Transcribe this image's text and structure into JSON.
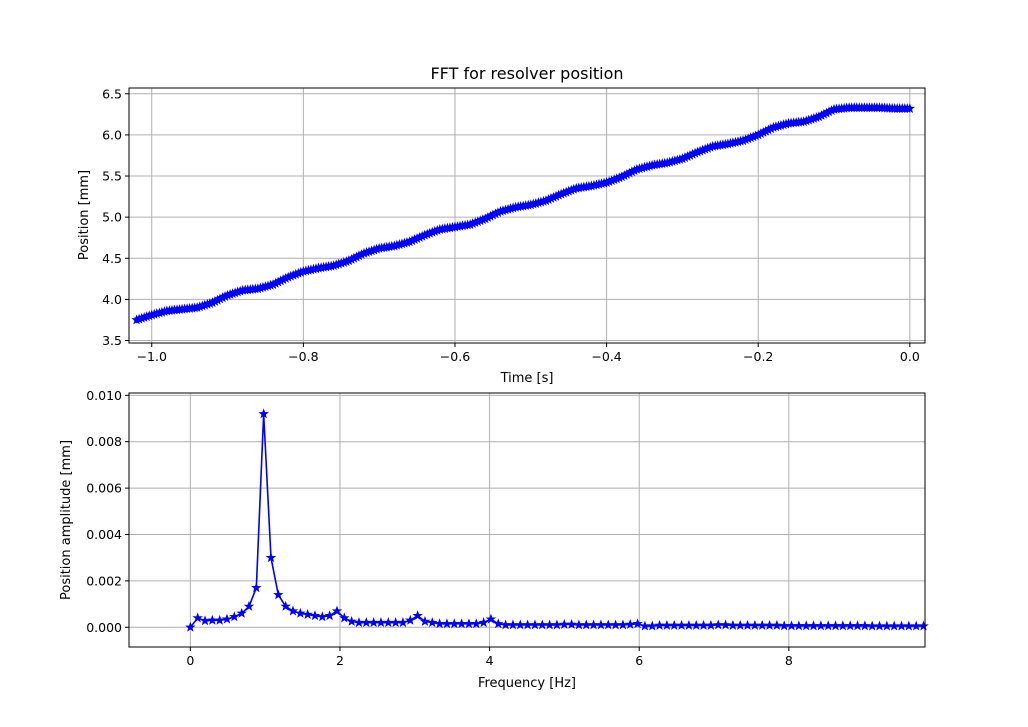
{
  "chart_data": [
    {
      "type": "line",
      "title": "FFT for resolver position",
      "xlabel": "Time [s]",
      "ylabel": "Position [mm]",
      "xlim": [
        -1.03,
        0.02
      ],
      "ylim": [
        3.47,
        6.57
      ],
      "xticks": [
        -1.0,
        -0.8,
        -0.6,
        -0.4,
        -0.2,
        0.0
      ],
      "xtick_labels": [
        "−1.0",
        "−0.8",
        "−0.6",
        "−0.4",
        "−0.2",
        "0.0"
      ],
      "yticks": [
        3.5,
        4.0,
        4.5,
        5.0,
        5.5,
        6.0,
        6.5
      ],
      "ytick_labels": [
        "3.5",
        "4.0",
        "4.5",
        "5.0",
        "5.5",
        "6.0",
        "6.5"
      ],
      "grid": true,
      "color": "#0000ff",
      "marker": "star",
      "series": [
        {
          "x": [
            -1.02,
            -1.0,
            -0.98,
            -0.96,
            -0.94,
            -0.92,
            -0.9,
            -0.88,
            -0.86,
            -0.84,
            -0.82,
            -0.8,
            -0.78,
            -0.76,
            -0.74,
            -0.72,
            -0.7,
            -0.68,
            -0.66,
            -0.64,
            -0.62,
            -0.6,
            -0.58,
            -0.56,
            -0.54,
            -0.52,
            -0.5,
            -0.48,
            -0.46,
            -0.44,
            -0.42,
            -0.4,
            -0.38,
            -0.36,
            -0.34,
            -0.32,
            -0.3,
            -0.28,
            -0.26,
            -0.24,
            -0.22,
            -0.2,
            -0.18,
            -0.16,
            -0.14,
            -0.12,
            -0.1,
            -0.08,
            -0.06,
            -0.04,
            -0.02,
            0.0
          ],
          "y": [
            3.75,
            3.81,
            3.86,
            3.88,
            3.9,
            3.96,
            4.05,
            4.11,
            4.13,
            4.18,
            4.27,
            4.34,
            4.38,
            4.41,
            4.47,
            4.56,
            4.62,
            4.65,
            4.7,
            4.78,
            4.85,
            4.88,
            4.91,
            4.98,
            5.07,
            5.12,
            5.15,
            5.2,
            5.28,
            5.35,
            5.38,
            5.42,
            5.49,
            5.58,
            5.63,
            5.66,
            5.71,
            5.79,
            5.86,
            5.89,
            5.93,
            6.0,
            6.09,
            6.14,
            6.16,
            6.22,
            6.31,
            6.33,
            6.33,
            6.33,
            6.32,
            6.32
          ]
        }
      ]
    },
    {
      "type": "line",
      "title": "",
      "xlabel": "Frequency [Hz]",
      "ylabel": "Position amplitude [mm]",
      "xlim": [
        -0.82,
        9.82
      ],
      "ylim": [
        -0.00085,
        0.0101
      ],
      "xticks": [
        0,
        2,
        4,
        6,
        8
      ],
      "xtick_labels": [
        "0",
        "2",
        "4",
        "6",
        "8"
      ],
      "yticks": [
        0.0,
        0.002,
        0.004,
        0.006,
        0.008,
        0.01
      ],
      "ytick_labels": [
        "0.000",
        "0.002",
        "0.004",
        "0.006",
        "0.008",
        "0.010"
      ],
      "grid": true,
      "color": "#0000ff",
      "marker": "star",
      "series": [
        {
          "x": [
            0.0,
            0.098,
            0.196,
            0.294,
            0.392,
            0.49,
            0.588,
            0.686,
            0.784,
            0.882,
            0.98,
            1.078,
            1.176,
            1.274,
            1.372,
            1.47,
            1.568,
            1.666,
            1.764,
            1.862,
            1.96,
            2.058,
            2.156,
            2.254,
            2.352,
            2.45,
            2.548,
            2.646,
            2.744,
            2.842,
            2.94,
            3.038,
            3.136,
            3.234,
            3.332,
            3.43,
            3.528,
            3.626,
            3.724,
            3.822,
            3.92,
            4.018,
            4.116,
            4.214,
            4.312,
            4.41,
            4.508,
            4.606,
            4.704,
            4.802,
            4.9,
            4.998,
            5.096,
            5.194,
            5.292,
            5.39,
            5.488,
            5.586,
            5.684,
            5.782,
            5.88,
            5.978,
            6.076,
            6.174,
            6.272,
            6.37,
            6.468,
            6.566,
            6.664,
            6.762,
            6.86,
            6.958,
            7.056,
            7.154,
            7.252,
            7.35,
            7.448,
            7.546,
            7.644,
            7.742,
            7.84,
            7.938,
            8.036,
            8.134,
            8.232,
            8.33,
            8.428,
            8.526,
            8.624,
            8.722,
            8.82,
            8.918,
            9.016,
            9.114,
            9.212,
            9.31,
            9.408,
            9.506,
            9.604,
            9.702,
            9.8
          ],
          "y": [
            0.0,
            0.0004,
            0.00028,
            0.0003,
            0.0003,
            0.00035,
            0.00045,
            0.0006,
            0.0009,
            0.0017,
            0.0092,
            0.003,
            0.0014,
            0.0009,
            0.0007,
            0.0006,
            0.00055,
            0.0005,
            0.00045,
            0.0005,
            0.0007,
            0.0004,
            0.00025,
            0.0002,
            0.0002,
            0.0002,
            0.0002,
            0.0002,
            0.0002,
            0.0002,
            0.0003,
            0.0005,
            0.00025,
            0.0002,
            0.00015,
            0.00015,
            0.00015,
            0.00015,
            0.00015,
            0.00015,
            0.0002,
            0.00035,
            0.00015,
            0.0001,
            0.0001,
            0.0001,
            0.0001,
            0.0001,
            0.0001,
            0.0001,
            0.0001,
            0.00012,
            0.00012,
            0.0001,
            0.0001,
            0.0001,
            0.0001,
            0.0001,
            0.0001,
            0.0001,
            0.00012,
            0.00015,
            5e-05,
            5e-05,
            8e-05,
            8e-05,
            8e-05,
            8e-05,
            8e-05,
            8e-05,
            8e-05,
            8e-05,
            0.0001,
            0.0001,
            8e-05,
            8e-05,
            8e-05,
            8e-05,
            8e-05,
            8e-05,
            8e-05,
            6e-05,
            6e-05,
            6e-05,
            6e-05,
            6e-05,
            6e-05,
            6e-05,
            6e-05,
            6e-05,
            6e-05,
            6e-05,
            6e-05,
            5e-05,
            5e-05,
            5e-05,
            5e-05,
            5e-05,
            5e-05,
            5e-05,
            5e-05
          ]
        }
      ]
    }
  ]
}
